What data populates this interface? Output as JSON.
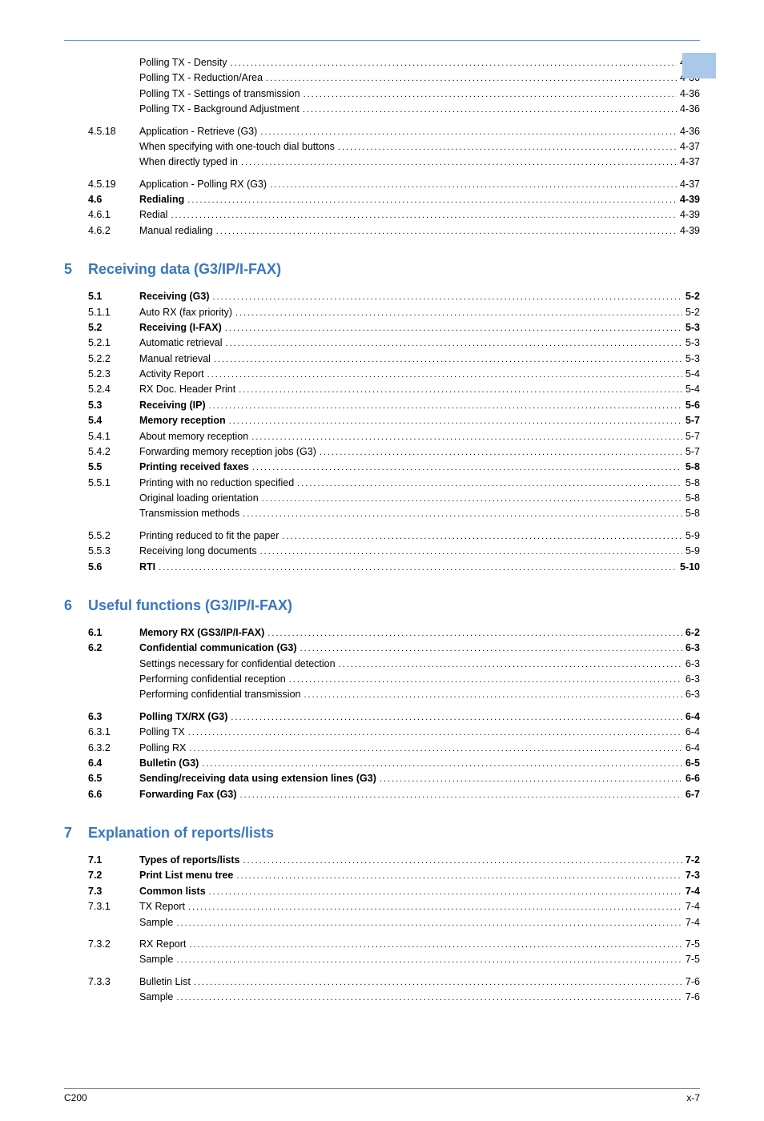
{
  "accent_color": "#a9c8ea",
  "rule_color": "#6b96d0",
  "chapter_color": "#3a77c0",
  "footer_left": "C200",
  "footer_right": "x-7",
  "sections": [
    {
      "type": "lines",
      "lines": [
        {
          "num": "",
          "title": "Polling TX - Density",
          "page": "4-36",
          "level": 2
        },
        {
          "num": "",
          "title": "Polling TX - Reduction/Area",
          "page": "4-36",
          "level": 2
        },
        {
          "num": "",
          "title": "Polling TX - Settings of transmission",
          "page": "4-36",
          "level": 2
        },
        {
          "num": "",
          "title": "Polling TX - Background Adjustment",
          "page": "4-36",
          "level": 2
        },
        {
          "gap": true
        },
        {
          "num": "4.5.18",
          "title": "Application - Retrieve (G3)",
          "page": "4-36",
          "level": 1
        },
        {
          "num": "",
          "title": "When specifying with one-touch dial buttons",
          "page": "4-37",
          "level": 2
        },
        {
          "num": "",
          "title": "When directly typed in",
          "page": "4-37",
          "level": 2
        },
        {
          "gap": true
        },
        {
          "num": "4.5.19",
          "title": "Application - Polling RX (G3)",
          "page": "4-37",
          "level": 1
        },
        {
          "num": "4.6",
          "title": "Redialing",
          "page": "4-39",
          "level": 0,
          "bold": true
        },
        {
          "num": "4.6.1",
          "title": "Redial",
          "page": "4-39",
          "level": 1
        },
        {
          "num": "4.6.2",
          "title": "Manual redialing",
          "page": "4-39",
          "level": 1
        }
      ]
    },
    {
      "type": "chapter",
      "num": "5",
      "title": "Receiving data (G3/IP/I-FAX)",
      "lines": [
        {
          "num": "5.1",
          "title": "Receiving (G3)",
          "page": "5-2",
          "level": 0,
          "bold": true
        },
        {
          "num": "5.1.1",
          "title": "Auto RX (fax priority)",
          "page": "5-2",
          "level": 1
        },
        {
          "num": "5.2",
          "title": "Receiving (I-FAX)",
          "page": "5-3",
          "level": 0,
          "bold": true
        },
        {
          "num": "5.2.1",
          "title": "Automatic retrieval",
          "page": "5-3",
          "level": 1
        },
        {
          "num": "5.2.2",
          "title": "Manual retrieval",
          "page": "5-3",
          "level": 1
        },
        {
          "num": "5.2.3",
          "title": "Activity Report",
          "page": "5-4",
          "level": 1
        },
        {
          "num": "5.2.4",
          "title": "RX Doc. Header Print",
          "page": "5-4",
          "level": 1
        },
        {
          "num": "5.3",
          "title": "Receiving (IP)",
          "page": "5-6",
          "level": 0,
          "bold": true
        },
        {
          "num": "5.4",
          "title": "Memory reception",
          "page": "5-7",
          "level": 0,
          "bold": true
        },
        {
          "num": "5.4.1",
          "title": "About memory reception",
          "page": "5-7",
          "level": 1
        },
        {
          "num": "5.4.2",
          "title": "Forwarding memory reception jobs (G3)",
          "page": "5-7",
          "level": 1
        },
        {
          "num": "5.5",
          "title": "Printing received faxes",
          "page": "5-8",
          "level": 0,
          "bold": true
        },
        {
          "num": "5.5.1",
          "title": "Printing with no reduction specified",
          "page": "5-8",
          "level": 1
        },
        {
          "num": "",
          "title": "Original loading orientation",
          "page": "5-8",
          "level": 2
        },
        {
          "num": "",
          "title": "Transmission methods",
          "page": "5-8",
          "level": 2
        },
        {
          "gap": true
        },
        {
          "num": "5.5.2",
          "title": "Printing reduced to fit the paper",
          "page": "5-9",
          "level": 1
        },
        {
          "num": "5.5.3",
          "title": "Receiving long documents",
          "page": "5-9",
          "level": 1
        },
        {
          "num": "5.6",
          "title": "RTI",
          "page": "5-10",
          "level": 0,
          "bold": true
        }
      ]
    },
    {
      "type": "chapter",
      "num": "6",
      "title": "Useful functions (G3/IP/I-FAX)",
      "lines": [
        {
          "num": "6.1",
          "title": "Memory RX (GS3/IP/I-FAX)",
          "page": "6-2",
          "level": 0,
          "bold": true
        },
        {
          "num": "6.2",
          "title": "Confidential communication (G3)",
          "page": "6-3",
          "level": 0,
          "bold": true
        },
        {
          "num": "",
          "title": "Settings necessary for confidential detection",
          "page": "6-3",
          "level": 2
        },
        {
          "num": "",
          "title": "Performing confidential reception",
          "page": "6-3",
          "level": 2
        },
        {
          "num": "",
          "title": "Performing confidential transmission",
          "page": "6-3",
          "level": 2
        },
        {
          "gap": true
        },
        {
          "num": "6.3",
          "title": "Polling TX/RX (G3)",
          "page": "6-4",
          "level": 0,
          "bold": true
        },
        {
          "num": "6.3.1",
          "title": "Polling TX",
          "page": "6-4",
          "level": 1
        },
        {
          "num": "6.3.2",
          "title": "Polling RX",
          "page": "6-4",
          "level": 1
        },
        {
          "num": "6.4",
          "title": "Bulletin (G3)",
          "page": "6-5",
          "level": 0,
          "bold": true
        },
        {
          "num": "6.5",
          "title": "Sending/receiving data using extension lines (G3)",
          "page": "6-6",
          "level": 0,
          "bold": true
        },
        {
          "num": "6.6",
          "title": "Forwarding Fax (G3)",
          "page": "6-7",
          "level": 0,
          "bold": true
        }
      ]
    },
    {
      "type": "chapter",
      "num": "7",
      "title": "Explanation of reports/lists",
      "lines": [
        {
          "num": "7.1",
          "title": "Types of reports/lists",
          "page": "7-2",
          "level": 0,
          "bold": true
        },
        {
          "num": "7.2",
          "title": "Print List menu tree",
          "page": "7-3",
          "level": 0,
          "bold": true
        },
        {
          "num": "7.3",
          "title": "Common lists",
          "page": "7-4",
          "level": 0,
          "bold": true
        },
        {
          "num": "7.3.1",
          "title": "TX Report",
          "page": "7-4",
          "level": 1
        },
        {
          "num": "",
          "title": "Sample",
          "page": "7-4",
          "level": 2
        },
        {
          "gap": true
        },
        {
          "num": "7.3.2",
          "title": "RX Report",
          "page": "7-5",
          "level": 1
        },
        {
          "num": "",
          "title": "Sample",
          "page": "7-5",
          "level": 2
        },
        {
          "gap": true
        },
        {
          "num": "7.3.3",
          "title": "Bulletin List",
          "page": "7-6",
          "level": 1
        },
        {
          "num": "",
          "title": "Sample",
          "page": "7-6",
          "level": 2
        }
      ]
    }
  ]
}
